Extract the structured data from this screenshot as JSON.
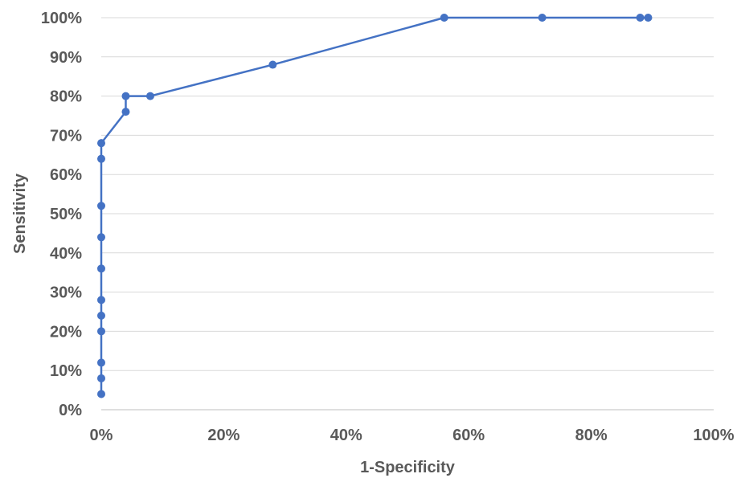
{
  "chart_data": {
    "type": "line",
    "xlabel": "1-Specificity",
    "ylabel": "Sensitivity",
    "xlim": [
      0,
      100
    ],
    "ylim": [
      0,
      100
    ],
    "x_ticks": [
      0,
      20,
      40,
      60,
      80,
      100
    ],
    "y_ticks": [
      0,
      10,
      20,
      30,
      40,
      50,
      60,
      70,
      80,
      90,
      100
    ],
    "x_tick_labels": [
      "0%",
      "20%",
      "40%",
      "60%",
      "80%",
      "100%"
    ],
    "y_tick_labels": [
      "0%",
      "10%",
      "20%",
      "30%",
      "40%",
      "50%",
      "60%",
      "70%",
      "80%",
      "90%",
      "100%"
    ],
    "grid": "horizontal",
    "series": [
      {
        "color": "#4472c4",
        "points": [
          {
            "x": 0,
            "y": 4
          },
          {
            "x": 0,
            "y": 8
          },
          {
            "x": 0,
            "y": 12
          },
          {
            "x": 0,
            "y": 20
          },
          {
            "x": 0,
            "y": 24
          },
          {
            "x": 0,
            "y": 28
          },
          {
            "x": 0,
            "y": 36
          },
          {
            "x": 0,
            "y": 44
          },
          {
            "x": 0,
            "y": 52
          },
          {
            "x": 0,
            "y": 64
          },
          {
            "x": 0,
            "y": 68
          },
          {
            "x": 4,
            "y": 76
          },
          {
            "x": 4,
            "y": 80
          },
          {
            "x": 8,
            "y": 80
          },
          {
            "x": 28,
            "y": 88
          },
          {
            "x": 56,
            "y": 100
          },
          {
            "x": 72,
            "y": 100
          },
          {
            "x": 88,
            "y": 100
          },
          {
            "x": 89.3,
            "y": 100
          }
        ]
      }
    ]
  }
}
